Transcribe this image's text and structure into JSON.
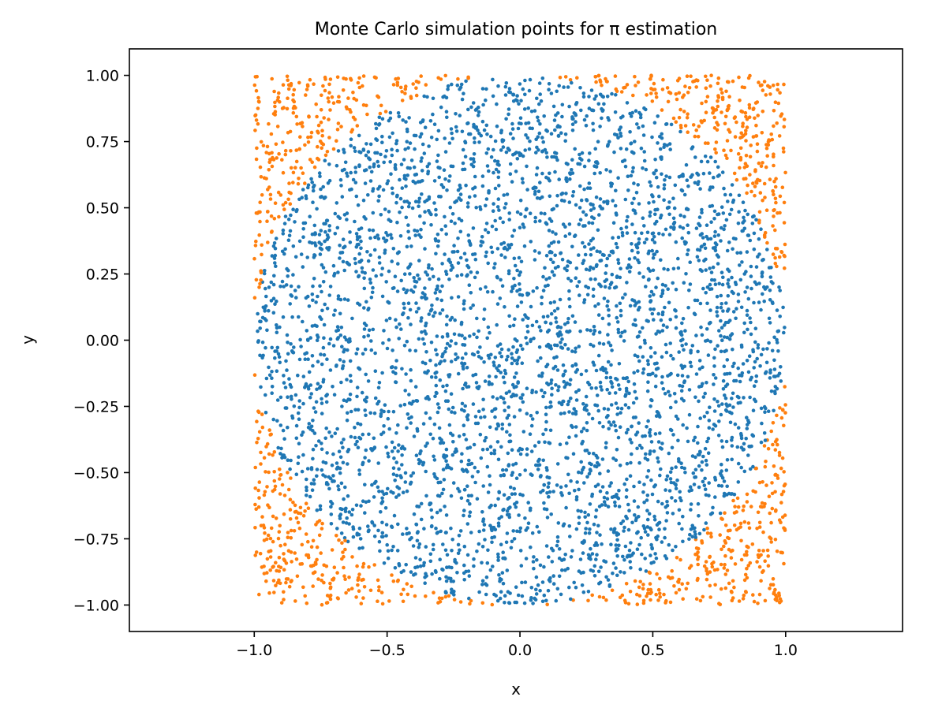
{
  "chart_data": {
    "type": "scatter",
    "title": "Monte Carlo simulation points for π estimation",
    "xlabel": "x",
    "ylabel": "y",
    "xlim": [
      -1.47,
      1.44
    ],
    "ylim": [
      -1.1,
      1.1
    ],
    "aspect": "equal",
    "grid": false,
    "legend": "none",
    "xticks": [
      {
        "value": -1.0,
        "label": "−1.0"
      },
      {
        "value": -0.5,
        "label": "−0.5"
      },
      {
        "value": 0.0,
        "label": "0.0"
      },
      {
        "value": 0.5,
        "label": "0.5"
      },
      {
        "value": 1.0,
        "label": "1.0"
      }
    ],
    "yticks": [
      {
        "value": 1.0,
        "label": "1.00"
      },
      {
        "value": 0.75,
        "label": "0.75"
      },
      {
        "value": 0.5,
        "label": "0.50"
      },
      {
        "value": 0.25,
        "label": "0.25"
      },
      {
        "value": 0.0,
        "label": "0.00"
      },
      {
        "value": -0.25,
        "label": "−0.25"
      },
      {
        "value": -0.5,
        "label": "−0.50"
      },
      {
        "value": -0.75,
        "label": "−0.75"
      },
      {
        "value": -1.0,
        "label": "−1.00"
      }
    ],
    "points": {
      "n_points": 5000,
      "distribution": "uniform over [-1,1] x [-1,1]",
      "inside_circle_color": "#1f77b4",
      "outside_circle_color": "#ff7f0e",
      "circle_radius": 1
    }
  }
}
